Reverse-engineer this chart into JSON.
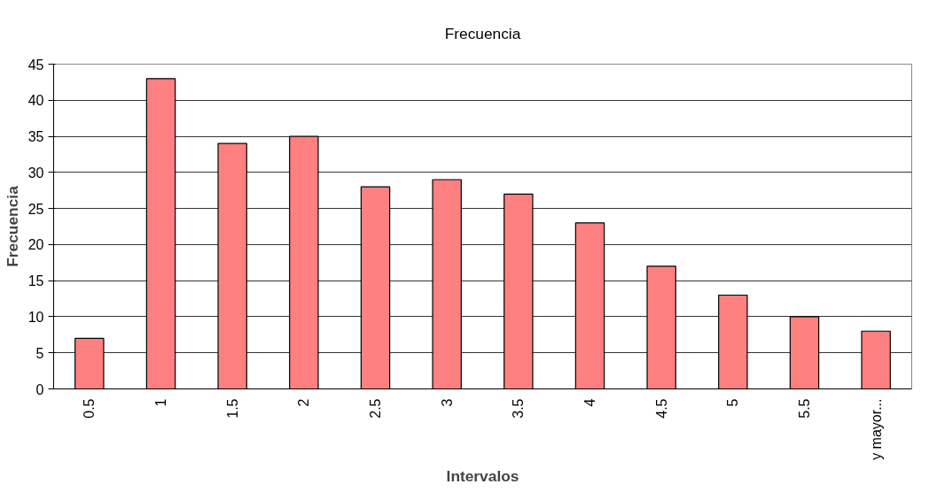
{
  "chart_data": {
    "type": "bar",
    "title": "Frecuencia",
    "xlabel": "Intervalos",
    "ylabel": "Frecuencia",
    "categories": [
      "0.5",
      "1",
      "1.5",
      "2",
      "2.5",
      "3",
      "3.5",
      "4",
      "4.5",
      "5",
      "5.5",
      "y mayor..."
    ],
    "values": [
      7,
      43,
      34,
      35,
      28,
      29,
      27,
      23,
      17,
      13,
      10,
      8
    ],
    "color": "#ff8080",
    "ylim": [
      0,
      45
    ],
    "yticks": [
      0,
      5,
      10,
      15,
      20,
      25,
      30,
      35,
      40,
      45
    ],
    "grid": "y"
  }
}
